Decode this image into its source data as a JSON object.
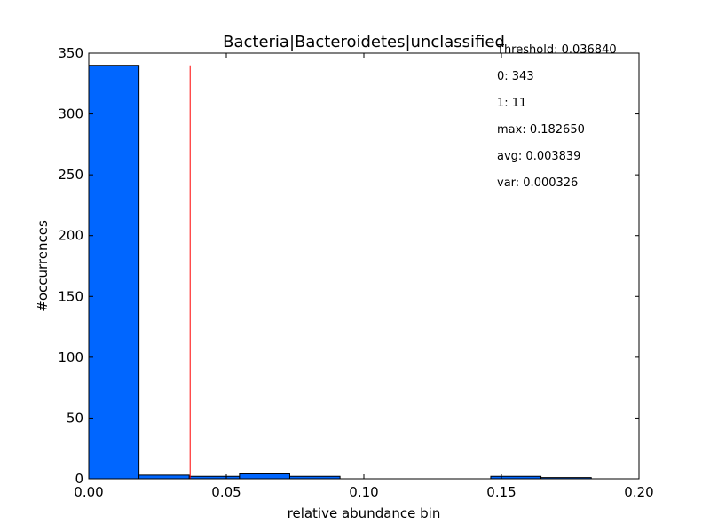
{
  "chart_data": {
    "type": "bar",
    "title": "Bacteria|Bacteroidetes|unclassified",
    "xlabel": "relative abundance bin",
    "ylabel": "#occurrences",
    "xlim": [
      0.0,
      0.2
    ],
    "ylim": [
      0,
      350
    ],
    "bin_edges": [
      0.0,
      0.018265,
      0.03653,
      0.054795,
      0.07306,
      0.091325,
      0.10959,
      0.127855,
      0.14612,
      0.164385,
      0.18265
    ],
    "values": [
      340,
      3,
      2,
      4,
      2,
      0,
      0,
      0,
      2,
      1
    ],
    "bar_color": "#0066ff",
    "threshold": 0.03684,
    "threshold_color": "#ff0000",
    "x_ticks": [
      {
        "value": 0.0,
        "label": "0.00"
      },
      {
        "value": 0.05,
        "label": "0.05"
      },
      {
        "value": 0.1,
        "label": "0.10"
      },
      {
        "value": 0.15,
        "label": "0.15"
      },
      {
        "value": 0.2,
        "label": "0.20"
      }
    ],
    "y_ticks": [
      {
        "value": 0,
        "label": "0"
      },
      {
        "value": 50,
        "label": "50"
      },
      {
        "value": 100,
        "label": "100"
      },
      {
        "value": 150,
        "label": "150"
      },
      {
        "value": 200,
        "label": "200"
      },
      {
        "value": 250,
        "label": "250"
      },
      {
        "value": 300,
        "label": "300"
      },
      {
        "value": 350,
        "label": "350"
      }
    ],
    "annotations": [
      "Threshold: 0.036840",
      "0: 343",
      "1: 11",
      "max: 0.182650",
      "avg: 0.003839",
      "var: 0.000326"
    ],
    "grid": false
  }
}
